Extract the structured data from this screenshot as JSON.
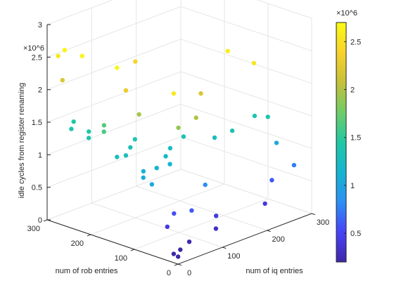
{
  "chart_data": {
    "type": "scatter3d",
    "title": "",
    "xlabel": "num of iq entries",
    "ylabel": "num of rob entries",
    "zlabel": "idle cycles from register renaming",
    "z_exponent": "×10^6",
    "colorbar_exponent": "×10^6",
    "xlim": [
      0,
      300
    ],
    "ylim": [
      0,
      300
    ],
    "zlim": [
      0,
      3000000
    ],
    "x_ticks": [
      "0",
      "100",
      "200",
      "300"
    ],
    "y_ticks": [
      "0",
      "100",
      "200",
      "300"
    ],
    "z_ticks": [
      "0",
      "0.5",
      "1",
      "1.5",
      "2",
      "2.5",
      "3"
    ],
    "colorbar_ticks": [
      "0.5",
      "1",
      "1.5",
      "2",
      "2.5"
    ],
    "colorbar_range": [
      200000,
      2700000
    ],
    "colormap": [
      "#3e26a8",
      "#4743f8",
      "#2d8ff4",
      "#14b5d0",
      "#20c8a5",
      "#70cc67",
      "#c6c038",
      "#f8d22a",
      "#f9fb14"
    ],
    "grid": true,
    "points": [
      {
        "x": 5,
        "y": 5,
        "z": 90000
      },
      {
        "x": 5,
        "y": 15,
        "z": 110000
      },
      {
        "x": 15,
        "y": 10,
        "z": 160000
      },
      {
        "x": 35,
        "y": 10,
        "z": 230000
      },
      {
        "x": 20,
        "y": 45,
        "z": 420000
      },
      {
        "x": 40,
        "y": 50,
        "z": 560000
      },
      {
        "x": 60,
        "y": 30,
        "z": 600000
      },
      {
        "x": 90,
        "y": 5,
        "z": 300000
      },
      {
        "x": 110,
        "y": 25,
        "z": 400000
      },
      {
        "x": 110,
        "y": 50,
        "z": 820000
      },
      {
        "x": 200,
        "y": 5,
        "z": 400000
      },
      {
        "x": 240,
        "y": 30,
        "z": 600000
      },
      {
        "x": 280,
        "y": 20,
        "z": 750000
      },
      {
        "x": 270,
        "y": 50,
        "z": 1050000
      },
      {
        "x": 260,
        "y": 90,
        "z": 1400000
      },
      {
        "x": 275,
        "y": 75,
        "z": 1380000
      },
      {
        "x": 200,
        "y": 80,
        "z": 1350000
      },
      {
        "x": 180,
        "y": 100,
        "z": 1250000
      },
      {
        "x": 10,
        "y": 70,
        "z": 1040000
      },
      {
        "x": 20,
        "y": 100,
        "z": 1050000
      },
      {
        "x": 30,
        "y": 110,
        "z": 1100000
      },
      {
        "x": 50,
        "y": 100,
        "z": 1120000
      },
      {
        "x": 70,
        "y": 90,
        "z": 1150000
      },
      {
        "x": 80,
        "y": 110,
        "z": 1200000
      },
      {
        "x": 100,
        "y": 120,
        "z": 1250000
      },
      {
        "x": 130,
        "y": 120,
        "z": 1350000
      },
      {
        "x": 10,
        "y": 150,
        "z": 1280000
      },
      {
        "x": 20,
        "y": 140,
        "z": 1300000
      },
      {
        "x": 40,
        "y": 150,
        "z": 1350000
      },
      {
        "x": 60,
        "y": 160,
        "z": 1400000
      },
      {
        "x": 15,
        "y": 220,
        "z": 1400000
      },
      {
        "x": 25,
        "y": 230,
        "z": 1450000
      },
      {
        "x": 25,
        "y": 270,
        "z": 1400000
      },
      {
        "x": 40,
        "y": 280,
        "z": 1450000
      },
      {
        "x": 10,
        "y": 180,
        "z": 1600000
      },
      {
        "x": 20,
        "y": 190,
        "z": 1650000
      },
      {
        "x": 40,
        "y": 40,
        "z": 1900000
      },
      {
        "x": 30,
        "y": 120,
        "z": 1950000
      },
      {
        "x": 5,
        "y": 270,
        "z": 2200000
      },
      {
        "x": 70,
        "y": 30,
        "z": 2000000
      },
      {
        "x": 110,
        "y": 60,
        "z": 2200000
      },
      {
        "x": 20,
        "y": 140,
        "z": 2300000
      },
      {
        "x": 10,
        "y": 270,
        "z": 2650000
      },
      {
        "x": 10,
        "y": 150,
        "z": 2650000
      },
      {
        "x": 10,
        "y": 230,
        "z": 2650000
      },
      {
        "x": 190,
        "y": 20,
        "z": 2550000
      },
      {
        "x": 190,
        "y": 80,
        "z": 2600000
      },
      {
        "x": 10,
        "y": 20,
        "z": 2550000
      },
      {
        "x": 5,
        "y": 280,
        "z": 2550000
      },
      {
        "x": 100,
        "y": 200,
        "z": 2400000
      }
    ]
  }
}
